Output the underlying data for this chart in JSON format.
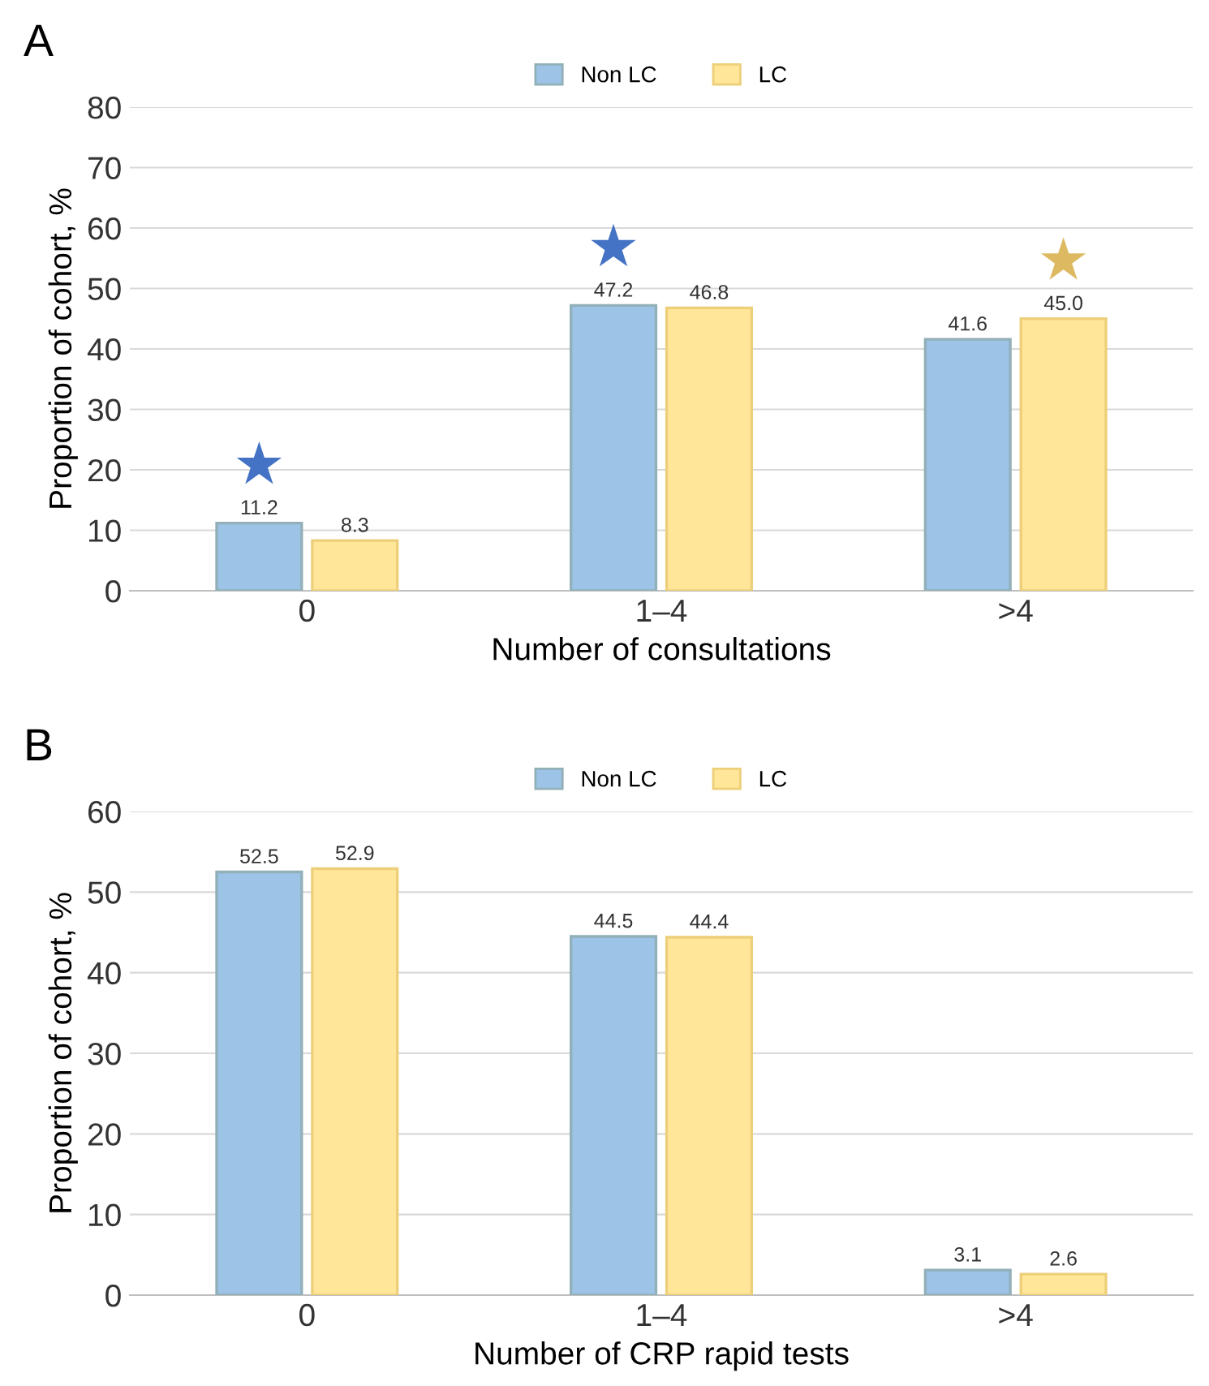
{
  "chart_data": [
    {
      "type": "bar",
      "title": "A",
      "xlabel": "Number of consultations",
      "ylabel": "Proportion of cohort, %",
      "categories": [
        "0",
        "1–4",
        ">4"
      ],
      "series": [
        {
          "name": "Non LC",
          "color": "#9dc3e6",
          "values": [
            11.2,
            47.2,
            41.6
          ]
        },
        {
          "name": "LC",
          "color": "#ffe699",
          "values": [
            8.3,
            46.8,
            45.0
          ]
        }
      ],
      "value_labels": [
        [
          "11.2",
          "47.2",
          "41.6"
        ],
        [
          "8.3",
          "46.8",
          "45.0"
        ]
      ],
      "annotations": [
        "★",
        "★",
        "★"
      ],
      "ylim": [
        0,
        80
      ],
      "yticks": [
        0,
        10,
        20,
        30,
        40,
        50,
        60,
        70,
        80
      ],
      "grid": "y",
      "legend": "top"
    },
    {
      "type": "bar",
      "title": "B",
      "xlabel": "Number of CRP rapid tests",
      "ylabel": "Proportion of cohort, %",
      "categories": [
        "0",
        "1–4",
        ">4"
      ],
      "series": [
        {
          "name": "Non LC",
          "color": "#9dc3e6",
          "values": [
            52.5,
            44.5,
            3.1
          ]
        },
        {
          "name": "LC",
          "color": "#ffe699",
          "values": [
            52.9,
            44.4,
            2.6
          ]
        }
      ],
      "value_labels": [
        [
          "52.5",
          "44.5",
          "3.1"
        ],
        [
          "52.9",
          "44.4",
          "2.6"
        ]
      ],
      "ylim": [
        0,
        60
      ],
      "yticks": [
        0,
        10,
        20,
        30,
        40,
        50,
        60
      ],
      "grid": "y",
      "legend": "top"
    }
  ]
}
